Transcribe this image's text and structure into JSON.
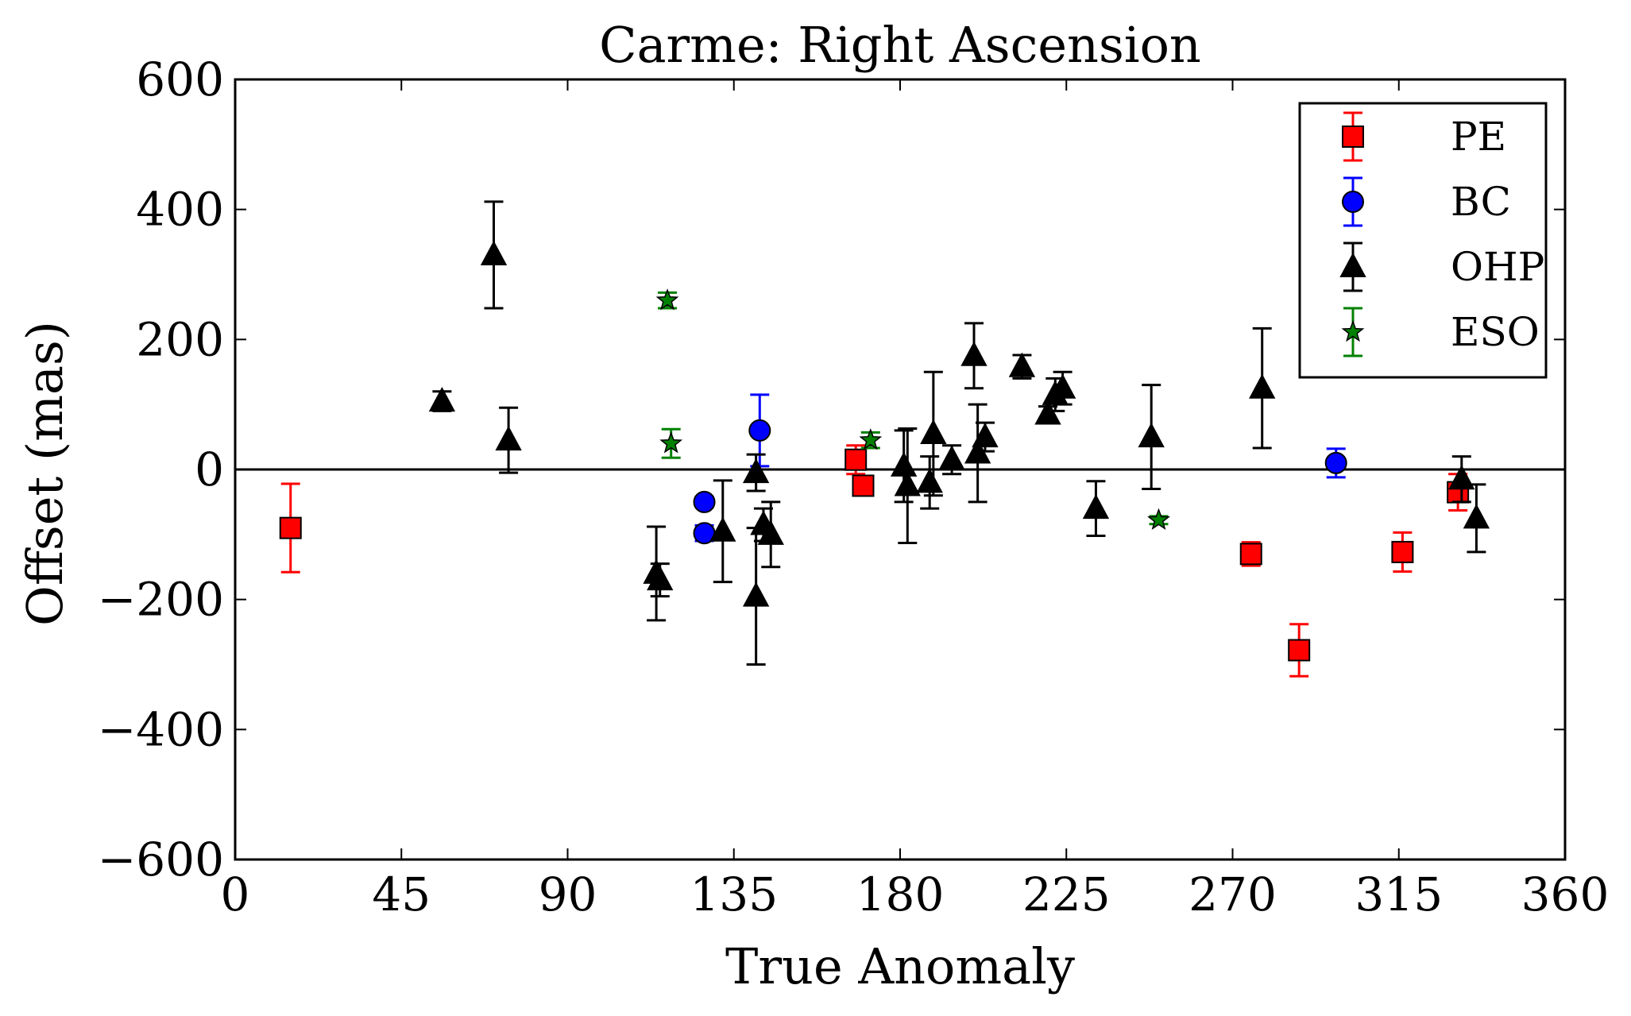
{
  "chart_data": {
    "type": "scatter",
    "title": "Carme: Right Ascension",
    "xlabel": "True Anomaly",
    "ylabel": "Offset (mas)",
    "xlim": [
      0,
      360
    ],
    "ylim": [
      -600,
      600
    ],
    "xticks": [
      0,
      45,
      90,
      135,
      180,
      225,
      270,
      315,
      360
    ],
    "xtick_labels": [
      "0",
      "45",
      "90",
      "135",
      "180",
      "225",
      "270",
      "315",
      "360"
    ],
    "yticks": [
      600,
      400,
      200,
      0,
      -200,
      -400,
      -600
    ],
    "ytick_labels": [
      "600",
      "400",
      "200",
      "0",
      "−200",
      "−400",
      "−600"
    ],
    "reference_line_y": 0,
    "legend_position": "top-right",
    "series": [
      {
        "name": "PE",
        "marker": "square",
        "color": "#ff0000",
        "points": [
          {
            "x": 15,
            "y": -90,
            "err": 68
          },
          {
            "x": 168,
            "y": 15,
            "err": 22
          },
          {
            "x": 170,
            "y": -25,
            "err": 8
          },
          {
            "x": 275,
            "y": -130,
            "err": 18
          },
          {
            "x": 288,
            "y": -278,
            "err": 40
          },
          {
            "x": 316,
            "y": -127,
            "err": 30
          },
          {
            "x": 331,
            "y": -35,
            "err": 28
          }
        ]
      },
      {
        "name": "BC",
        "marker": "circle",
        "color": "#0000ff",
        "points": [
          {
            "x": 127,
            "y": -50,
            "err": 8
          },
          {
            "x": 127,
            "y": -98,
            "err": 12
          },
          {
            "x": 142,
            "y": 60,
            "err": 55
          },
          {
            "x": 298,
            "y": 10,
            "err": 22
          }
        ]
      },
      {
        "name": "OHP",
        "marker": "triangle",
        "color": "#000000",
        "points": [
          {
            "x": 56,
            "y": 105,
            "err": 15
          },
          {
            "x": 70,
            "y": 330,
            "err": 82
          },
          {
            "x": 74,
            "y": 45,
            "err": 50
          },
          {
            "x": 114,
            "y": -160,
            "err": 72
          },
          {
            "x": 115,
            "y": -170,
            "err": 25
          },
          {
            "x": 132,
            "y": -95,
            "err": 78
          },
          {
            "x": 141,
            "y": -5,
            "err": 28
          },
          {
            "x": 141,
            "y": -195,
            "err": 105
          },
          {
            "x": 143,
            "y": -85,
            "err": 25
          },
          {
            "x": 145,
            "y": -100,
            "err": 50
          },
          {
            "x": 181,
            "y": 5,
            "err": 55
          },
          {
            "x": 182,
            "y": -25,
            "err": 88
          },
          {
            "x": 188,
            "y": -20,
            "err": 40
          },
          {
            "x": 189,
            "y": 55,
            "err": 95
          },
          {
            "x": 194,
            "y": 15,
            "err": 22
          },
          {
            "x": 200,
            "y": 175,
            "err": 50
          },
          {
            "x": 201,
            "y": 25,
            "err": 75
          },
          {
            "x": 203,
            "y": 50,
            "err": 22
          },
          {
            "x": 213,
            "y": 158,
            "err": 18
          },
          {
            "x": 220,
            "y": 85,
            "err": 12
          },
          {
            "x": 222,
            "y": 115,
            "err": 25
          },
          {
            "x": 224,
            "y": 125,
            "err": 25
          },
          {
            "x": 233,
            "y": -60,
            "err": 42
          },
          {
            "x": 248,
            "y": 50,
            "err": 80
          },
          {
            "x": 278,
            "y": 125,
            "err": 92
          },
          {
            "x": 332,
            "y": -15,
            "err": 35
          },
          {
            "x": 336,
            "y": -75,
            "err": 52
          }
        ]
      },
      {
        "name": "ESO",
        "marker": "star",
        "color": "#008000",
        "points": [
          {
            "x": 117,
            "y": 260,
            "err": 12
          },
          {
            "x": 118,
            "y": 40,
            "err": 22
          },
          {
            "x": 172,
            "y": 45,
            "err": 12
          },
          {
            "x": 250,
            "y": -78,
            "err": 6
          }
        ]
      }
    ]
  }
}
